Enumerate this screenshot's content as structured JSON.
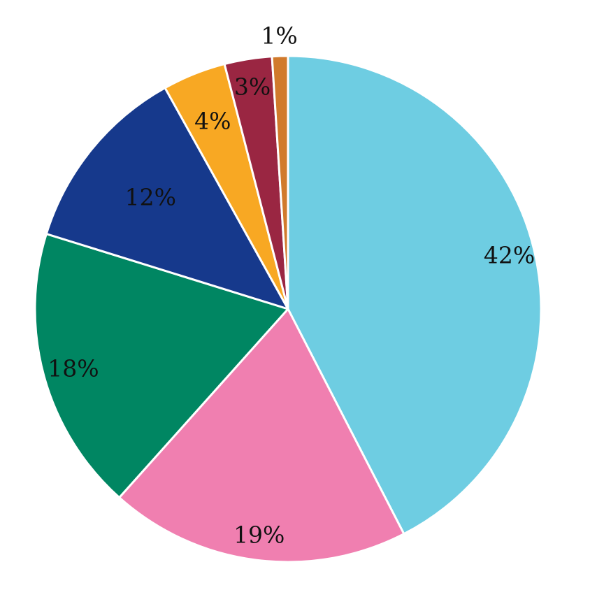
{
  "chart_data": {
    "type": "pie",
    "slices": [
      {
        "label": "42%",
        "value": 42,
        "color": "#6ecde2"
      },
      {
        "label": "19%",
        "value": 19,
        "color": "#f07fb0"
      },
      {
        "label": "18%",
        "value": 18,
        "color": "#008662"
      },
      {
        "label": "12%",
        "value": 12,
        "color": "#16398c"
      },
      {
        "label": "4%",
        "value": 4,
        "color": "#f8a823"
      },
      {
        "label": "3%",
        "value": 3,
        "color": "#9a2642"
      },
      {
        "label": "1%",
        "value": 1,
        "color": "#d17a2c"
      }
    ]
  }
}
